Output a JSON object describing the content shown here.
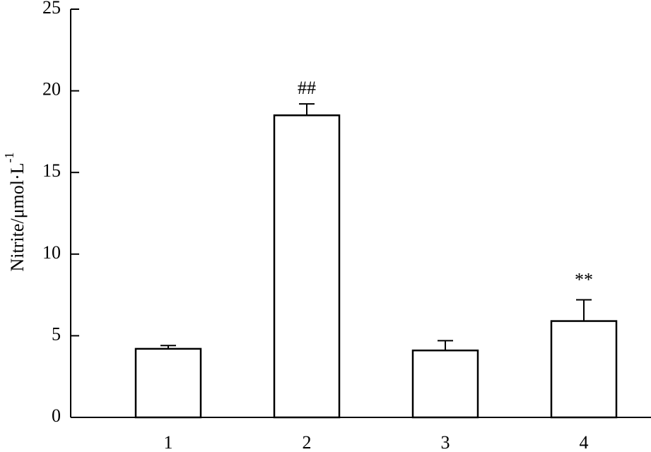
{
  "chart_data": {
    "type": "bar",
    "y_label": "Nitrite/μmol·L",
    "y_label_superscript": "-1",
    "categories": [
      "1",
      "2",
      "3",
      "4"
    ],
    "values": [
      4.2,
      18.5,
      4.1,
      5.9
    ],
    "errors": [
      0.2,
      0.7,
      0.6,
      1.3
    ],
    "annotations": [
      null,
      "##",
      null,
      "**"
    ],
    "color": "#ffffff",
    "ylim": [
      0,
      25
    ],
    "yticks": [
      0,
      5,
      10,
      15,
      20,
      25
    ],
    "grid": false
  }
}
